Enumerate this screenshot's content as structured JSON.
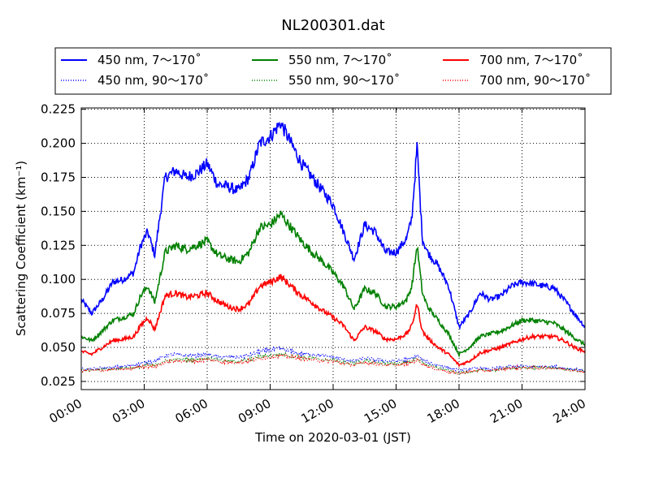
{
  "chart_data": {
    "type": "line",
    "title": "NL200301.dat",
    "xlabel": "Time on 2020-03-01 (JST)",
    "ylabel": "Scattering Coefficient (km⁻¹)",
    "xlim": [
      "00:00",
      "24:00"
    ],
    "ylim": [
      0.019,
      0.226
    ],
    "x_ticks": [
      "00:00",
      "03:00",
      "06:00",
      "09:00",
      "12:00",
      "15:00",
      "18:00",
      "21:00",
      "24:00"
    ],
    "y_ticks": [
      "0.025",
      "0.050",
      "0.075",
      "0.100",
      "0.125",
      "0.150",
      "0.175",
      "0.200",
      "0.225"
    ],
    "grid": true,
    "legend_position": "top",
    "x": [
      "00:00",
      "00:30",
      "01:00",
      "01:30",
      "02:00",
      "02:30",
      "02:50",
      "03:10",
      "03:30",
      "04:00",
      "04:30",
      "05:00",
      "05:30",
      "06:00",
      "06:30",
      "07:00",
      "07:30",
      "08:00",
      "08:30",
      "09:00",
      "09:30",
      "10:00",
      "10:30",
      "11:00",
      "11:30",
      "12:00",
      "12:30",
      "13:00",
      "13:30",
      "14:00",
      "14:30",
      "15:00",
      "15:30",
      "15:45",
      "16:00",
      "16:15",
      "16:30",
      "17:00",
      "17:30",
      "18:00",
      "18:30",
      "19:00",
      "19:30",
      "20:00",
      "20:30",
      "21:00",
      "21:30",
      "22:00",
      "22:30",
      "23:00",
      "23:30",
      "24:00"
    ],
    "series": [
      {
        "name": "450 nm, 7～170˚",
        "color": "#0000ff",
        "style": "solid",
        "values": [
          0.085,
          0.075,
          0.085,
          0.098,
          0.1,
          0.105,
          0.125,
          0.135,
          0.118,
          0.175,
          0.18,
          0.175,
          0.178,
          0.185,
          0.17,
          0.168,
          0.165,
          0.175,
          0.2,
          0.205,
          0.215,
          0.2,
          0.185,
          0.175,
          0.165,
          0.155,
          0.135,
          0.115,
          0.14,
          0.135,
          0.12,
          0.12,
          0.13,
          0.145,
          0.198,
          0.13,
          0.12,
          0.11,
          0.095,
          0.065,
          0.075,
          0.09,
          0.085,
          0.088,
          0.095,
          0.098,
          0.097,
          0.095,
          0.094,
          0.085,
          0.075,
          0.065
        ]
      },
      {
        "name": "450 nm, 90～170˚",
        "color": "#0000ff",
        "style": "dotted",
        "values": [
          0.034,
          0.034,
          0.035,
          0.035,
          0.036,
          0.037,
          0.038,
          0.039,
          0.04,
          0.044,
          0.045,
          0.044,
          0.044,
          0.045,
          0.043,
          0.043,
          0.043,
          0.044,
          0.047,
          0.048,
          0.049,
          0.047,
          0.045,
          0.045,
          0.044,
          0.043,
          0.041,
          0.04,
          0.042,
          0.041,
          0.04,
          0.04,
          0.041,
          0.042,
          0.044,
          0.041,
          0.039,
          0.037,
          0.035,
          0.033,
          0.034,
          0.035,
          0.034,
          0.035,
          0.036,
          0.036,
          0.036,
          0.036,
          0.036,
          0.035,
          0.034,
          0.033
        ]
      },
      {
        "name": "550 nm, 7～170˚",
        "color": "#008000",
        "style": "solid",
        "values": [
          0.058,
          0.055,
          0.062,
          0.07,
          0.072,
          0.075,
          0.088,
          0.095,
          0.083,
          0.12,
          0.125,
          0.122,
          0.125,
          0.128,
          0.118,
          0.115,
          0.113,
          0.12,
          0.138,
          0.14,
          0.148,
          0.138,
          0.128,
          0.12,
          0.113,
          0.105,
          0.095,
          0.078,
          0.093,
          0.09,
          0.08,
          0.08,
          0.085,
          0.095,
          0.125,
          0.09,
          0.08,
          0.07,
          0.06,
          0.045,
          0.05,
          0.058,
          0.06,
          0.062,
          0.066,
          0.07,
          0.07,
          0.069,
          0.068,
          0.063,
          0.057,
          0.052
        ]
      },
      {
        "name": "550 nm, 90～170˚",
        "color": "#008000",
        "style": "dotted",
        "values": [
          0.033,
          0.033,
          0.034,
          0.034,
          0.035,
          0.035,
          0.036,
          0.037,
          0.037,
          0.04,
          0.041,
          0.041,
          0.041,
          0.042,
          0.041,
          0.04,
          0.04,
          0.041,
          0.043,
          0.044,
          0.045,
          0.044,
          0.043,
          0.042,
          0.041,
          0.041,
          0.039,
          0.038,
          0.04,
          0.039,
          0.038,
          0.038,
          0.039,
          0.04,
          0.042,
          0.039,
          0.037,
          0.035,
          0.033,
          0.031,
          0.032,
          0.033,
          0.033,
          0.034,
          0.035,
          0.035,
          0.035,
          0.035,
          0.035,
          0.034,
          0.033,
          0.032
        ]
      },
      {
        "name": "700 nm, 7～170˚",
        "color": "#ff0000",
        "style": "solid",
        "values": [
          0.047,
          0.045,
          0.05,
          0.055,
          0.056,
          0.058,
          0.066,
          0.072,
          0.063,
          0.088,
          0.09,
          0.087,
          0.088,
          0.09,
          0.084,
          0.08,
          0.078,
          0.082,
          0.095,
          0.098,
          0.102,
          0.095,
          0.088,
          0.083,
          0.077,
          0.072,
          0.066,
          0.055,
          0.065,
          0.062,
          0.056,
          0.056,
          0.06,
          0.066,
          0.082,
          0.062,
          0.057,
          0.05,
          0.045,
          0.037,
          0.04,
          0.046,
          0.048,
          0.05,
          0.053,
          0.056,
          0.058,
          0.058,
          0.058,
          0.055,
          0.05,
          0.047
        ]
      },
      {
        "name": "700 nm, 90～170˚",
        "color": "#ff0000",
        "style": "dotted",
        "values": [
          0.033,
          0.033,
          0.033,
          0.034,
          0.034,
          0.035,
          0.036,
          0.036,
          0.036,
          0.039,
          0.04,
          0.04,
          0.04,
          0.041,
          0.04,
          0.039,
          0.039,
          0.04,
          0.042,
          0.043,
          0.044,
          0.043,
          0.042,
          0.041,
          0.04,
          0.04,
          0.038,
          0.037,
          0.039,
          0.038,
          0.037,
          0.037,
          0.038,
          0.039,
          0.041,
          0.038,
          0.036,
          0.034,
          0.032,
          0.031,
          0.032,
          0.033,
          0.033,
          0.034,
          0.035,
          0.035,
          0.035,
          0.035,
          0.035,
          0.034,
          0.033,
          0.032
        ]
      }
    ]
  }
}
